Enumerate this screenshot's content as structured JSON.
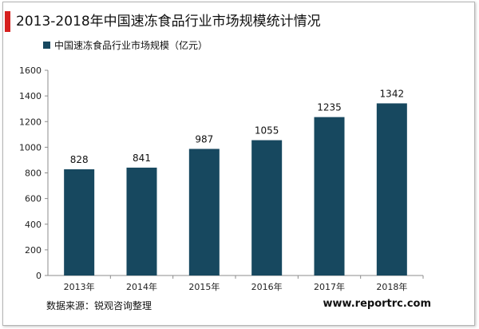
{
  "title": "2013-2018年中国速冻食品行业市场规模统计情况",
  "source": "数据来源：锐观咨询整理",
  "website": "www.reportrc.com",
  "colors": {
    "bar": "#17485f",
    "title_accent": "#d6201f"
  },
  "chart_data": {
    "type": "bar",
    "categories": [
      "2013年",
      "2014年",
      "2015年",
      "2016年",
      "2017年",
      "2018年"
    ],
    "series": [
      {
        "name": "中国速冻食品行业市场规模（亿元）",
        "values": [
          828,
          841,
          987,
          1055,
          1235,
          1342
        ]
      }
    ],
    "ylim": [
      0,
      1600
    ],
    "yticks": [
      0,
      200,
      400,
      600,
      800,
      1000,
      1200,
      1400,
      1600
    ],
    "grid": false,
    "legend": "top-left",
    "data_labels": true
  }
}
